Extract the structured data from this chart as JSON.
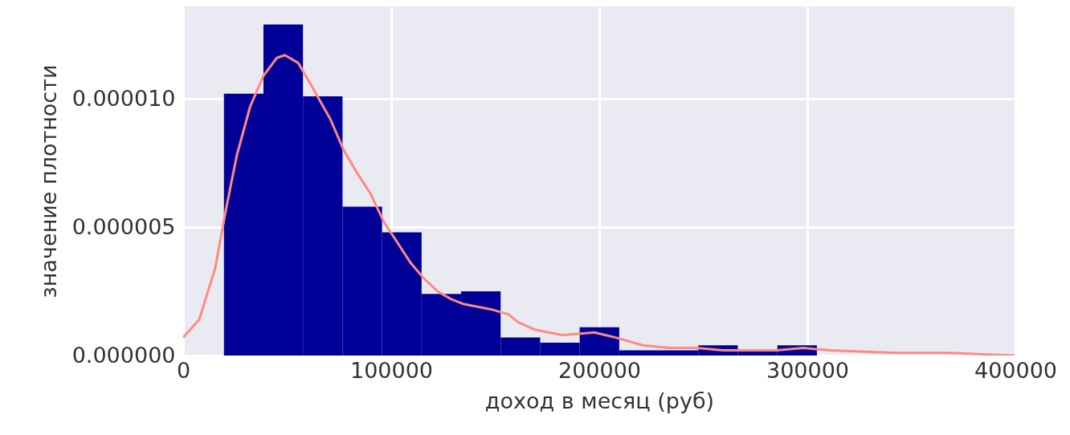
{
  "chart_data": {
    "type": "histogram",
    "xlabel": "доход в месяц (руб)",
    "ylabel": "значение плотности",
    "bins": [
      19600,
      38600,
      57600,
      76600,
      95600,
      114600,
      133600,
      152600,
      171600,
      190600,
      209600,
      228600,
      247600,
      266600,
      285600,
      304600
    ],
    "values": [
      1.02e-05,
      1.29e-05,
      1.01e-05,
      5.8e-06,
      4.8e-06,
      2.4e-06,
      2.5e-06,
      7e-07,
      5e-07,
      1.1e-06,
      2e-07,
      2e-07,
      4e-07,
      2e-07,
      4e-07
    ],
    "color": "#000099",
    "series": [
      {
        "type": "line",
        "color": "#ff8a80",
        "x": [
          0,
          7700,
          15400,
          20600,
          25800,
          32200,
          38600,
          45100,
          48900,
          55300,
          61800,
          70800,
          77200,
          83700,
          90100,
          96500,
          103000,
          109400,
          115800,
          122300,
          128700,
          135100,
          141600,
          148000,
          156500,
          160900,
          169400,
          182200,
          197700,
          208000,
          220900,
          233700,
          246600,
          259500,
          272300,
          285200,
          298100,
          310800,
          343100,
          368700,
          399600
        ],
        "values": [
          7e-07,
          1.4e-06,
          3.4e-06,
          5.7e-06,
          7.8e-06,
          9.7e-06,
          1.09e-05,
          1.16e-05,
          1.17e-05,
          1.14e-05,
          1.05e-05,
          9.2e-06,
          8e-06,
          7.1e-06,
          6.3e-06,
          5.2e-06,
          4.4e-06,
          3.6e-06,
          3e-06,
          2.5e-06,
          2.2e-06,
          2e-06,
          1.9e-06,
          1.8e-06,
          1.6e-06,
          1.3e-06,
          1e-06,
          8e-07,
          9e-07,
          7e-07,
          4e-07,
          3e-07,
          3e-07,
          2e-07,
          2e-07,
          2e-07,
          3e-07,
          2e-07,
          1e-07,
          1e-07,
          0
        ]
      }
    ],
    "xlim": [
      0,
      400000
    ],
    "ylim": [
      0,
      1.36e-05
    ],
    "xticks": [
      0,
      100000,
      200000,
      300000,
      400000
    ],
    "yticks": [
      {
        "value": 0,
        "label": "0.000000"
      },
      {
        "value": 5e-06,
        "label": "0.000005"
      },
      {
        "value": 1e-05,
        "label": "0.000010"
      }
    ],
    "grid": true
  }
}
